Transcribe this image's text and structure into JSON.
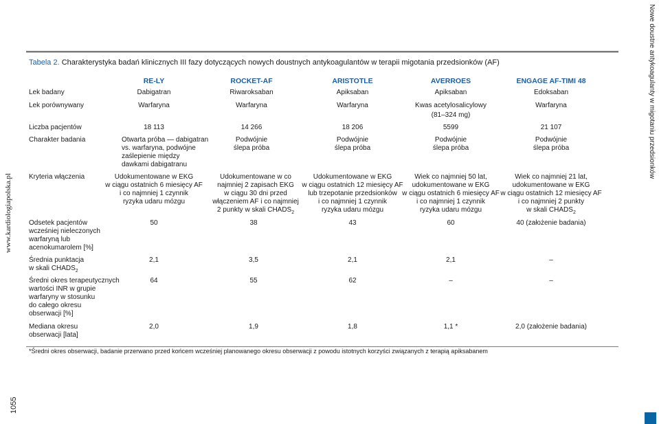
{
  "side_text_left": "www.kardiologiapolska.pl",
  "side_text_right": "Nowe doustne antykoagulanty w migotaniu przedsionków",
  "page_number": "1055",
  "caption": {
    "label": "Tabela 2.",
    "text": "Charakterystyka badań klinicznych III fazy dotyczących nowych doustnych antykoagulantów w terapii migotania przedsionków (AF)"
  },
  "columns": [
    "RE-LY",
    "ROCKET-AF",
    "ARISTOTLE",
    "AVERROES",
    "ENGAGE AF-TIMI 48"
  ],
  "rows": {
    "lek_badany": {
      "label": "Lek badany",
      "cells": [
        "Dabigatran",
        "Riwaroksaban",
        "Apiksaban",
        "Apiksaban",
        "Edoksaban"
      ]
    },
    "lek_porownywany": {
      "label": "Lek porównywany",
      "cells": [
        "Warfaryna",
        "Warfaryna",
        "Warfaryna",
        "Kwas acetylosalicylowy",
        "Warfaryna"
      ],
      "extra": "(81–324 mg)"
    },
    "liczba": {
      "label": "Liczba pacjentów",
      "cells": [
        "18 113",
        "14 266",
        "18 206",
        "5599",
        "21 107"
      ]
    },
    "charakter": {
      "label": "Charakter badania",
      "c0": [
        "Otwarta próba — dabigatran",
        "vs. warfaryna, podwójne",
        "zaślepienie między",
        "dawkami dabigatranu"
      ],
      "c1": [
        "Podwójnie",
        "ślepa próba"
      ],
      "c2": [
        "Podwójnie",
        "ślepa próba"
      ],
      "c3": [
        "Podwójnie",
        "ślepa próba"
      ],
      "c4": [
        "Podwójnie",
        "ślepa próba"
      ]
    },
    "kryteria": {
      "label": "Kryteria włączenia",
      "c0": [
        "Udokumentowane w EKG",
        "w ciągu ostatnich 6 miesięcy AF",
        "i co najmniej 1 czynnik",
        "ryzyka udaru mózgu"
      ],
      "c1": [
        "Udokumentowane w co",
        "najmniej 2 zapisach EKG",
        "w ciągu 30 dni przed",
        "włączeniem AF i co najmniej",
        "2 punkty w skali CHADS"
      ],
      "c1_sub": "2",
      "c2": [
        "Udokumentowane w EKG",
        "w ciągu ostatnich 12 miesięcy AF",
        "lub trzepotanie przedsionków",
        "i co najmniej 1 czynnik",
        "ryzyka udaru mózgu"
      ],
      "c3": [
        "Wiek co najmniej 50 lat,",
        "udokumentowane w EKG",
        "w ciągu ostatnich 6 miesięcy AF",
        "i co najmniej 1 czynnik",
        "ryzyka udaru mózgu"
      ],
      "c4": [
        "Wiek co najmniej 21 lat,",
        "udokumentowane w EKG",
        "w ciągu ostatnich 12 miesięcy AF",
        "i co najmniej 2 punkty",
        "w skali CHADS"
      ],
      "c4_sub": "2"
    },
    "odsetek": {
      "label": [
        "Odsetek pacjentów",
        "wcześniej nieleczonych",
        "warfaryną lub",
        "acenokumarolem [%]"
      ],
      "cells": [
        "50",
        "38",
        "43",
        "60",
        "40 (założenie badania)"
      ]
    },
    "srednia": {
      "label": [
        "Średnia punktacja",
        "w skali CHADS"
      ],
      "label_sub": "2",
      "cells": [
        "2,1",
        "3,5",
        "2,1",
        "2,1",
        "–"
      ]
    },
    "sredni_okres": {
      "label": [
        "Średni okres terapeutycznych",
        "wartości INR w grupie",
        "warfaryny w stosunku",
        "do całego okresu",
        "obserwacji [%]"
      ],
      "cells": [
        "64",
        "55",
        "62",
        "–",
        "–"
      ]
    },
    "mediana": {
      "label": [
        "Mediana okresu",
        "obserwacji [lata]"
      ],
      "cells": [
        "2,0",
        "1,9",
        "1,8",
        "1,1 *",
        "2,0 (założenie badania)"
      ]
    }
  },
  "footnote": "*Średni okres obserwacji, badanie przerwano przed końcem wcześniej planowanego okresu obserwacji z powodu istotnych korzyści związanych z terapią apiksabanem",
  "colors": {
    "accent": "#1c5fa0",
    "corner": "#0a65a5",
    "rule": "#7a7a7a"
  }
}
